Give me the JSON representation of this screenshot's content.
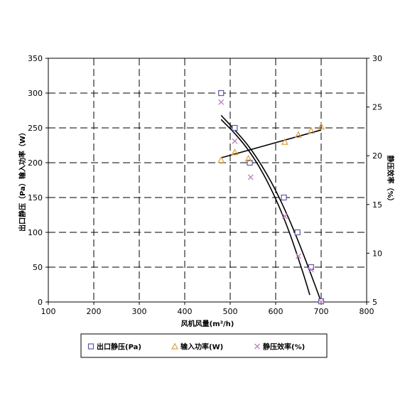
{
  "chart_data": {
    "type": "scatter",
    "xlabel": "风机风量(m³/h)",
    "ylabel_left": "出口静压（Pa）输入功率（W）",
    "ylabel_right": "静压效率（%）",
    "xlim": [
      100,
      800
    ],
    "ylim_left": [
      0,
      350
    ],
    "ylim_right": [
      5,
      30
    ],
    "x_ticks": [
      100,
      200,
      300,
      400,
      500,
      600,
      700,
      800
    ],
    "y_left_ticks": [
      0,
      50,
      100,
      150,
      200,
      250,
      300,
      350
    ],
    "y_right_ticks": [
      5,
      10,
      15,
      20,
      25,
      30
    ],
    "grid": true,
    "legend_position": "bottom",
    "series": [
      {
        "name": "出口静压(Pa)",
        "axis": "left",
        "marker": "square",
        "color": "#5a5aa8",
        "points": [
          [
            480,
            300
          ],
          [
            510,
            250
          ],
          [
            543,
            200
          ],
          [
            618,
            150
          ],
          [
            648,
            100
          ],
          [
            678,
            50
          ],
          [
            700,
            1
          ]
        ]
      },
      {
        "name": "输入功率(W)",
        "axis": "left",
        "marker": "triangle",
        "color": "#e0a040",
        "points": [
          [
            480,
            204
          ],
          [
            510,
            215
          ],
          [
            540,
            206
          ],
          [
            620,
            230
          ],
          [
            650,
            240
          ],
          [
            678,
            246
          ],
          [
            700,
            252
          ]
        ]
      },
      {
        "name": "静压效率(%)",
        "axis": "right",
        "marker": "x",
        "color": "#c080c0",
        "points": [
          [
            480,
            25.5
          ],
          [
            510,
            21.5
          ],
          [
            545,
            17.8
          ],
          [
            620,
            13.8
          ],
          [
            650,
            9.7
          ],
          [
            678,
            8.3
          ],
          [
            700,
            5.0
          ]
        ]
      }
    ],
    "trendlines": [
      {
        "axis": "left",
        "kind": "poly",
        "points": [
          [
            480,
            268
          ],
          [
            510,
            247
          ],
          [
            540,
            224
          ],
          [
            570,
            195
          ],
          [
            600,
            160
          ],
          [
            630,
            118
          ],
          [
            660,
            70
          ],
          [
            690,
            18
          ],
          [
            700,
            0
          ]
        ]
      },
      {
        "axis": "left",
        "kind": "linear",
        "points": [
          [
            480,
            207
          ],
          [
            700,
            247
          ]
        ]
      },
      {
        "axis": "left",
        "kind": "poly",
        "points": [
          [
            480,
            262
          ],
          [
            510,
            242
          ],
          [
            540,
            218
          ],
          [
            570,
            187
          ],
          [
            600,
            148
          ],
          [
            630,
            100
          ],
          [
            660,
            42
          ],
          [
            675,
            10
          ]
        ]
      }
    ]
  }
}
